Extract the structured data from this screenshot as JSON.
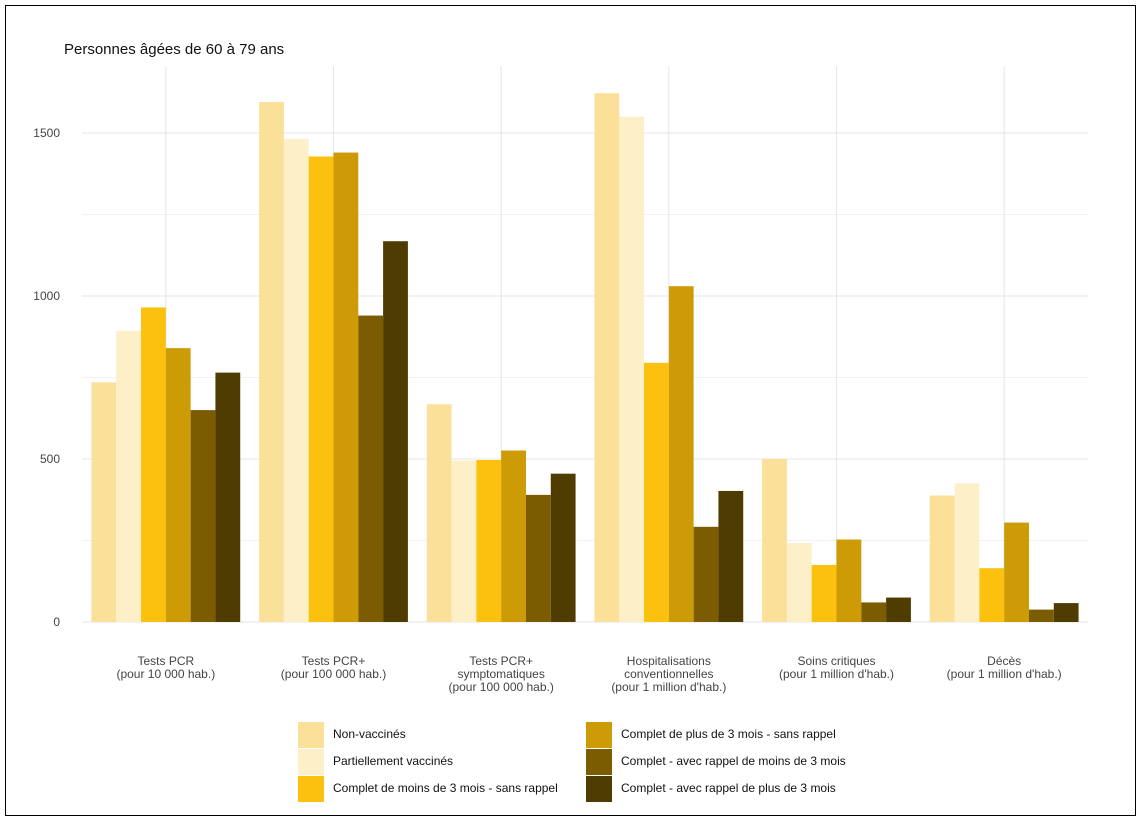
{
  "chart_data": {
    "type": "bar",
    "title": "Personnes âgées de 60 à 79 ans",
    "xlabel": "",
    "ylabel": "",
    "ylim": [
      0,
      1700
    ],
    "yticks": [
      0,
      500,
      1000,
      1500
    ],
    "grid": true,
    "legend_position": "bottom",
    "categories": [
      [
        "Tests PCR",
        "(pour 10 000 hab.)"
      ],
      [
        "Tests PCR+",
        "(pour 100 000 hab.)"
      ],
      [
        "Tests PCR+",
        "symptomatiques",
        "(pour 100 000 hab.)"
      ],
      [
        "Hospitalisations",
        "conventionnelles",
        "(pour 1 million d'hab.)"
      ],
      [
        "Soins critiques",
        "(pour 1 million d'hab.)"
      ],
      [
        "Décès",
        "(pour 1 million d'hab.)"
      ]
    ],
    "series": [
      {
        "name": "Non-vaccinés",
        "color": "#FBE09A",
        "values": [
          735,
          1595,
          668,
          1622,
          500,
          388
        ]
      },
      {
        "name": "Partiellement vaccinés",
        "color": "#FDEFC7",
        "values": [
          893,
          1482,
          495,
          1550,
          242,
          425
        ]
      },
      {
        "name": "Complet de moins de 3 mois - sans rappel",
        "color": "#FCC10F",
        "values": [
          965,
          1428,
          497,
          795,
          175,
          165
        ]
      },
      {
        "name": "Complet de plus de 3 mois - sans rappel",
        "color": "#CC9B05",
        "values": [
          840,
          1440,
          526,
          1030,
          253,
          305
        ]
      },
      {
        "name": "Complet - avec rappel de moins de 3 mois",
        "color": "#7C5C00",
        "values": [
          650,
          940,
          390,
          292,
          60,
          38
        ]
      },
      {
        "name": "Complet - avec rappel de plus de 3 mois",
        "color": "#4F3C00",
        "values": [
          765,
          1168,
          455,
          402,
          75,
          58
        ]
      }
    ]
  }
}
